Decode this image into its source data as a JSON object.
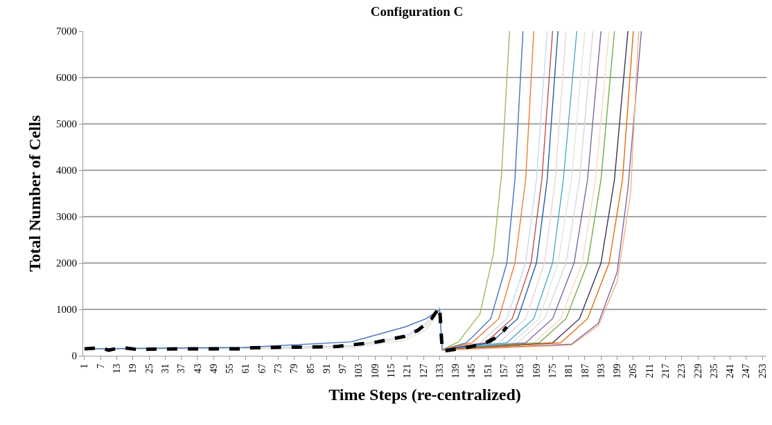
{
  "chart_data": {
    "type": "line",
    "title": "Configuration C",
    "xlabel": "Time Steps (re-centralized)",
    "ylabel": "Total Number of Cells",
    "xlim": [
      0.5,
      254.5
    ],
    "xticks": [
      1,
      7,
      13,
      19,
      25,
      31,
      37,
      43,
      49,
      55,
      61,
      67,
      73,
      79,
      85,
      91,
      97,
      103,
      109,
      115,
      121,
      127,
      133,
      139,
      145,
      151,
      157,
      163,
      169,
      175,
      181,
      187,
      193,
      199,
      205,
      211,
      217,
      223,
      229,
      235,
      241,
      247,
      253
    ],
    "ylim": [
      0,
      7000
    ],
    "yticks": [
      0,
      1000,
      2000,
      3000,
      4000,
      5000,
      6000,
      7000
    ],
    "grid": "y",
    "series": [
      {
        "color": "#c6dbe9",
        "x": [
          1,
          60,
          100,
          120,
          128,
          133,
          134,
          148,
          158,
          165,
          169,
          173
        ],
        "values": [
          150,
          160,
          220,
          420,
          700,
          1050,
          130,
          280,
          800,
          2000,
          3800,
          7000
        ]
      },
      {
        "color": "#e6d6d8",
        "x": [
          1,
          60,
          100,
          120,
          128,
          133,
          134,
          155,
          165,
          172,
          176,
          180
        ],
        "values": [
          150,
          160,
          200,
          380,
          640,
          1000,
          130,
          280,
          800,
          2000,
          3800,
          7000
        ]
      },
      {
        "color": "#dfe8d3",
        "x": [
          1,
          60,
          100,
          120,
          128,
          133,
          134,
          160,
          170,
          177,
          182,
          187
        ],
        "values": [
          140,
          150,
          170,
          330,
          560,
          950,
          120,
          280,
          800,
          2000,
          3800,
          7000
        ]
      },
      {
        "color": "#f8d9c4",
        "x": [
          134,
          168,
          178,
          186,
          191,
          196
        ],
        "values": [
          120,
          280,
          800,
          2000,
          3800,
          7000
        ]
      },
      {
        "color": "#d8d4e4",
        "x": [
          134,
          162,
          172,
          180,
          185,
          190
        ],
        "values": [
          120,
          280,
          800,
          2000,
          3800,
          7000
        ]
      },
      {
        "color": "#9bbb59",
        "x": [
          134,
          140,
          148,
          153,
          156,
          159
        ],
        "values": [
          130,
          300,
          900,
          2200,
          3900,
          7000
        ]
      },
      {
        "color": "#4472c4",
        "x": [
          1,
          60,
          100,
          120,
          128,
          133,
          134,
          143,
          152,
          158,
          161,
          164
        ],
        "values": [
          150,
          180,
          300,
          620,
          800,
          1000,
          130,
          280,
          800,
          2000,
          3800,
          7000
        ]
      },
      {
        "color": "#ed7d31",
        "x": [
          134,
          145,
          155,
          161,
          165,
          168
        ],
        "values": [
          130,
          280,
          800,
          2000,
          3800,
          7000
        ]
      },
      {
        "color": "#c0504d",
        "x": [
          134,
          150,
          160,
          167,
          171,
          175
        ],
        "values": [
          130,
          280,
          800,
          2000,
          3800,
          7000
        ]
      },
      {
        "color": "#4bacc6",
        "x": [
          134,
          158,
          168,
          175,
          179,
          184
        ],
        "values": [
          130,
          280,
          800,
          2000,
          3800,
          7000
        ]
      },
      {
        "color": "#1f5fa8",
        "x": [
          134,
          152,
          162,
          169,
          173,
          177
        ],
        "values": [
          130,
          280,
          800,
          2000,
          3800,
          7000
        ]
      },
      {
        "color": "#8064a2",
        "x": [
          134,
          165,
          175,
          183,
          188,
          193
        ],
        "values": [
          130,
          280,
          800,
          2000,
          3800,
          7000
        ]
      },
      {
        "color": "#70ad47",
        "x": [
          134,
          170,
          180,
          188,
          193,
          198
        ],
        "values": [
          130,
          280,
          800,
          2000,
          3800,
          7000
        ]
      },
      {
        "color": "#403152",
        "x": [
          134,
          175,
          185,
          193,
          198,
          203
        ],
        "values": [
          120,
          280,
          800,
          2000,
          3800,
          7000
        ]
      },
      {
        "color": "#e46c0a",
        "x": [
          134,
          178,
          188,
          196,
          201,
          205
        ],
        "values": [
          120,
          280,
          800,
          2000,
          3800,
          7000
        ]
      },
      {
        "color": "#8064a2",
        "x": [
          134,
          182,
          192,
          199,
          203,
          208
        ],
        "values": [
          120,
          250,
          700,
          1800,
          3600,
          7000
        ]
      },
      {
        "color": "#f4b183",
        "x": [
          134,
          182,
          192,
          199,
          204,
          207
        ],
        "values": [
          120,
          230,
          650,
          1600,
          3500,
          7000
        ]
      },
      {
        "color": "#000000",
        "line_style": "dashed",
        "x": [
          1,
          7,
          10,
          13,
          16,
          20,
          40,
          60,
          61,
          95,
          110,
          120,
          125,
          130,
          133,
          134,
          140,
          145,
          150,
          155,
          158
        ],
        "values": [
          150,
          170,
          120,
          160,
          170,
          140,
          150,
          150,
          170,
          200,
          300,
          420,
          550,
          800,
          1050,
          100,
          150,
          200,
          280,
          420,
          620
        ]
      }
    ]
  }
}
